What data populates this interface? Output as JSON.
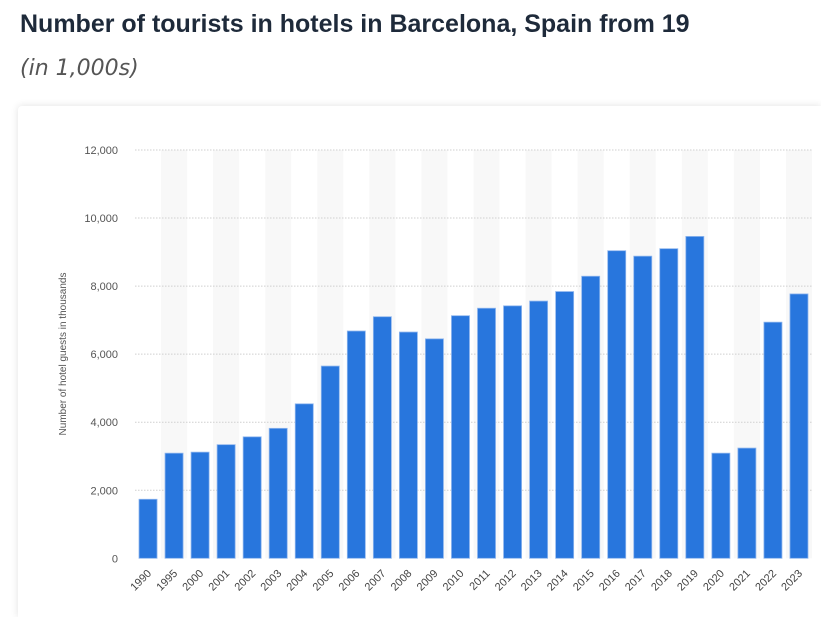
{
  "title": "Number of tourists in hotels in Barcelona, Spain from 19",
  "subtitle": "(in 1,000s)",
  "chart_data": {
    "type": "bar",
    "title": "Number of tourists in hotels in Barcelona, Spain from 19",
    "subtitle": "(in 1,000s)",
    "xlabel": "",
    "ylabel": "Number of hotel guests in thousands",
    "ylim": [
      0,
      12000
    ],
    "yticks": [
      0,
      2000,
      4000,
      6000,
      8000,
      10000,
      12000
    ],
    "ytick_labels": [
      "0",
      "2,000",
      "4,000",
      "6,000",
      "8,000",
      "10,000",
      "12,000"
    ],
    "grid": true,
    "bar_color": "#2876dd",
    "categories": [
      "1990",
      "1995",
      "2000",
      "2001",
      "2002",
      "2003",
      "2004",
      "2005",
      "2006",
      "2007",
      "2008",
      "2009",
      "2010",
      "2011",
      "2012",
      "2013",
      "2014",
      "2015",
      "2016",
      "2017",
      "2018",
      "2019",
      "2020",
      "2021",
      "2022",
      "2023"
    ],
    "values": [
      1735,
      3090,
      3120,
      3340,
      3570,
      3820,
      4540,
      5650,
      6680,
      7100,
      6650,
      6450,
      7130,
      7350,
      7420,
      7560,
      7840,
      8290,
      9040,
      8880,
      9100,
      9460,
      3090,
      3240,
      6940,
      7770
    ]
  }
}
